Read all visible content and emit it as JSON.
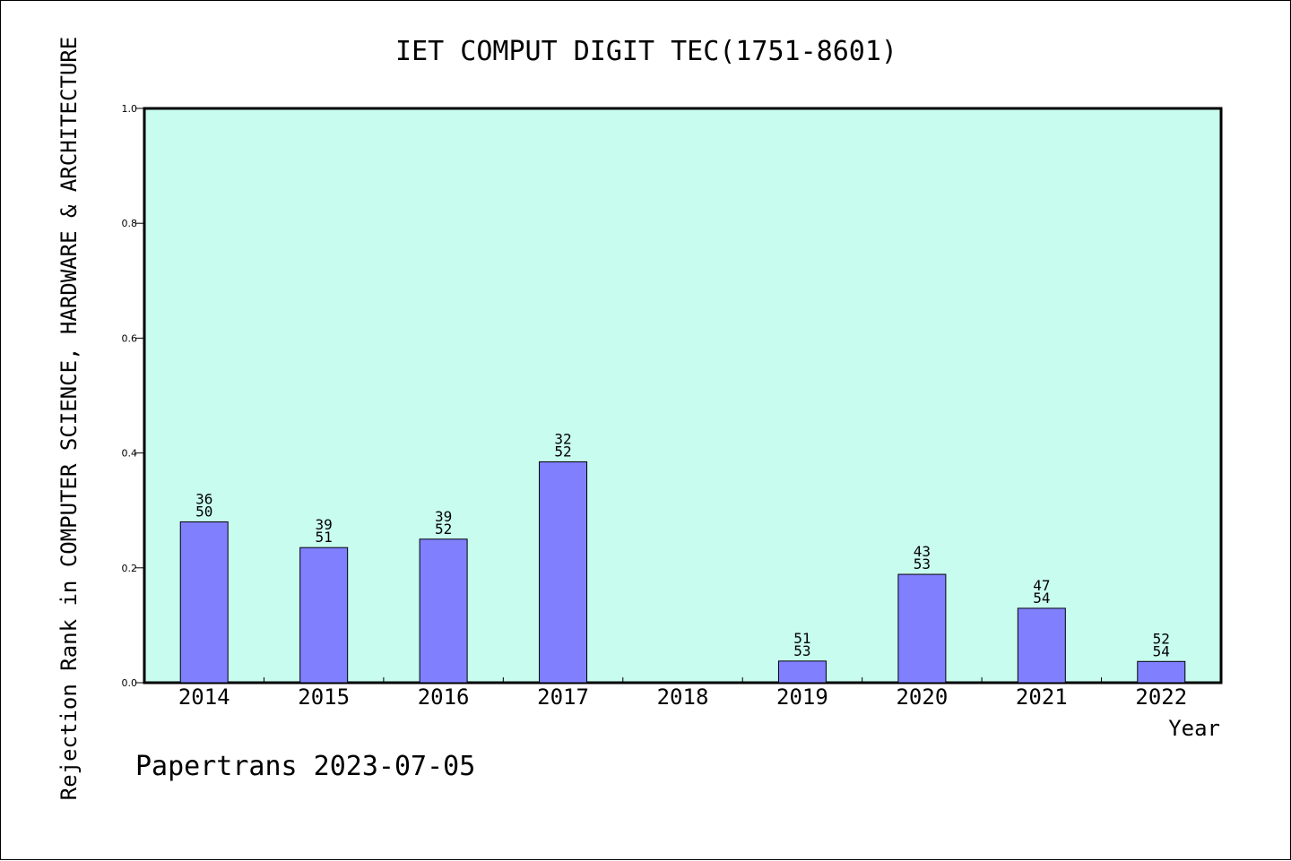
{
  "chart_data": {
    "type": "bar",
    "title": "IET COMPUT DIGIT TEC(1751-8601)",
    "ylabel": "Rejection Rank in COMPUTER SCIENCE, HARDWARE & ARCHITECTURE",
    "xlabel": "Year",
    "ylim": [
      0.0,
      1.0
    ],
    "yticks": [
      "0.0",
      "0.2",
      "0.4",
      "0.6",
      "0.8",
      "1.0"
    ],
    "categories": [
      "2014",
      "2015",
      "2016",
      "2017",
      "2018",
      "2019",
      "2020",
      "2021",
      "2022"
    ],
    "values": [
      0.28,
      0.2353,
      0.25,
      0.3846,
      null,
      0.0377,
      0.1887,
      0.1296,
      0.037
    ],
    "labels_top": [
      "36",
      "39",
      "39",
      "32",
      "",
      "51",
      "43",
      "47",
      "52"
    ],
    "labels_bottom": [
      "50",
      "51",
      "52",
      "52",
      "",
      "53",
      "53",
      "54",
      "54"
    ],
    "grid": false,
    "colors": {
      "plot_background": "#c8fcee",
      "bar_fill": "#8080ff",
      "bar_stroke": "#000000"
    }
  },
  "footer": "Papertrans 2023-07-05"
}
